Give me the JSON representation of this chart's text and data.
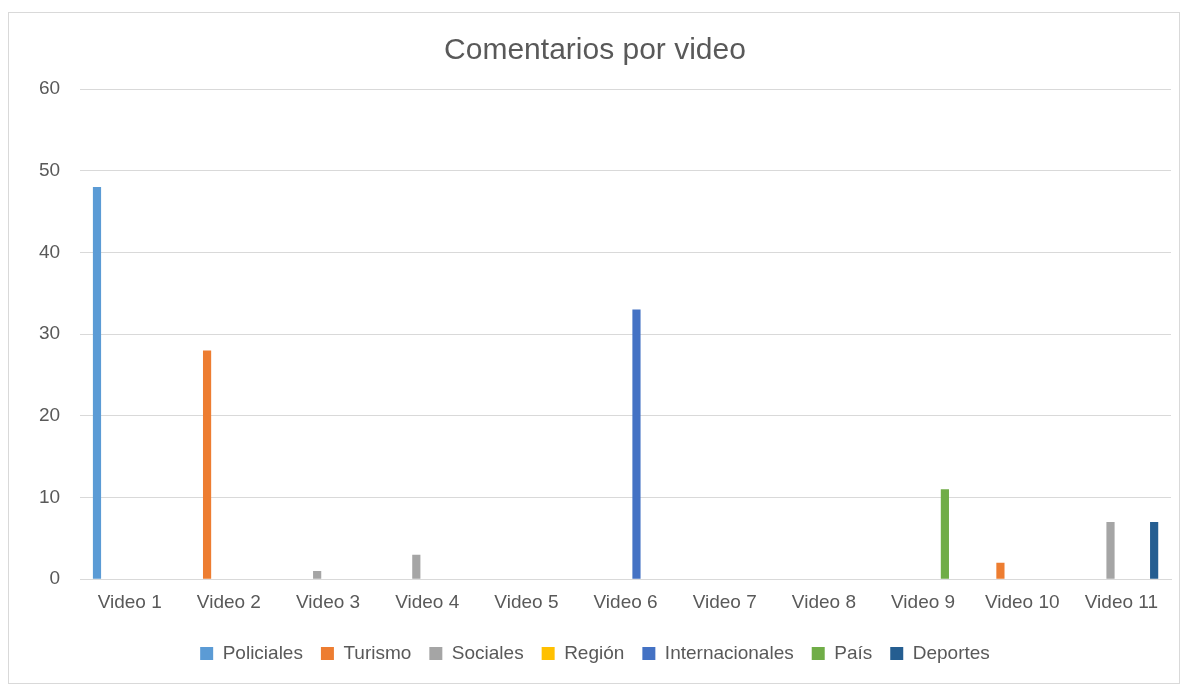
{
  "chart_data": {
    "type": "bar",
    "title": "Comentarios por video",
    "categories": [
      "Video 1",
      "Video 2",
      "Video 3",
      "Video 4",
      "Video 5",
      "Video 6",
      "Video 7",
      "Video 8",
      "Video 9",
      "Video 10",
      "Video 11"
    ],
    "series": [
      {
        "name": "Policiales",
        "color": "#5b9bd5",
        "values": [
          48,
          0,
          0,
          0,
          0,
          0,
          0,
          0,
          0,
          0,
          0
        ]
      },
      {
        "name": "Turismo",
        "color": "#ed7d31",
        "values": [
          0,
          28,
          0,
          0,
          0,
          0,
          0,
          0,
          0,
          2,
          0
        ]
      },
      {
        "name": "Sociales",
        "color": "#a5a5a5",
        "values": [
          0,
          0,
          1,
          3,
          0,
          0,
          0,
          0,
          0,
          0,
          7
        ]
      },
      {
        "name": "Región",
        "color": "#ffc000",
        "values": [
          0,
          0,
          0,
          0,
          0,
          0,
          0,
          0,
          0,
          0,
          0
        ]
      },
      {
        "name": "Internacionales",
        "color": "#4472c4",
        "values": [
          0,
          0,
          0,
          0,
          0,
          33,
          0,
          0,
          0,
          0,
          0
        ]
      },
      {
        "name": "País",
        "color": "#70ad47",
        "values": [
          0,
          0,
          0,
          0,
          0,
          0,
          0,
          0,
          11,
          0,
          0
        ]
      },
      {
        "name": "Deportes",
        "color": "#255e91",
        "values": [
          0,
          0,
          0,
          0,
          0,
          0,
          0,
          0,
          0,
          0,
          7
        ]
      }
    ],
    "ylim": [
      0,
      60
    ],
    "yticks": [
      0,
      10,
      20,
      30,
      40,
      50,
      60
    ],
    "grid": "y",
    "legend": "bottom"
  }
}
